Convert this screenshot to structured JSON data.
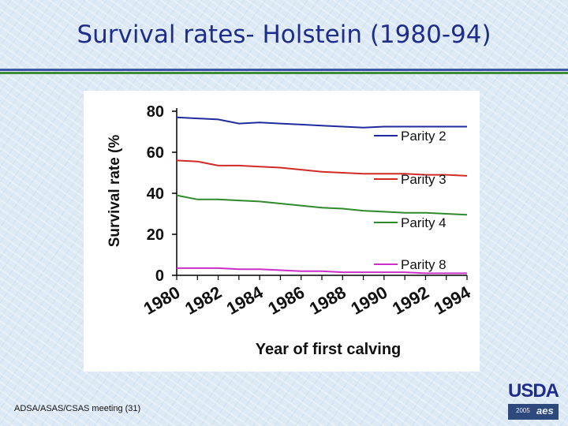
{
  "slide": {
    "title": "Survival rates- Holstein (1980-94)",
    "footer": "ADSA/ASAS/CSAS meeting (31)",
    "logo_text": "USDA",
    "logo_year": "2005",
    "logo_mark": "aes"
  },
  "colors": {
    "title": "#1f2d8a",
    "rule_blue": "#3d57a6",
    "rule_green": "#3e8a3a"
  },
  "chart_data": {
    "type": "line",
    "title": "",
    "xlabel": "Year of first calving",
    "ylabel": "Survival rate (%",
    "ylim": [
      0,
      80
    ],
    "yticks": [
      0,
      20,
      40,
      60,
      80
    ],
    "xlim": [
      1980,
      1994
    ],
    "xtick_labels": [
      "1980",
      "1982",
      "1984",
      "1986",
      "1988",
      "1990",
      "1992",
      "1994"
    ],
    "grid": false,
    "legend": "right",
    "x": [
      1980,
      1981,
      1982,
      1983,
      1984,
      1985,
      1986,
      1987,
      1988,
      1989,
      1990,
      1991,
      1992,
      1993,
      1994
    ],
    "series": [
      {
        "name": "Parity 2",
        "color": "#1f2a9e",
        "values": [
          77,
          76.5,
          76,
          74,
          74.5,
          74,
          73.5,
          73,
          72.5,
          72,
          72.5,
          72.5,
          72.5,
          72.5,
          72.5
        ]
      },
      {
        "name": "Parity 3",
        "color": "#d22a26",
        "values": [
          56,
          55.5,
          53.5,
          53.5,
          53,
          52.5,
          51.5,
          50.5,
          50,
          49.5,
          49.5,
          49.5,
          49,
          49,
          48.5
        ]
      },
      {
        "name": "Parity 4",
        "color": "#2f8a2c",
        "values": [
          39,
          37,
          37,
          36.5,
          36,
          35,
          34,
          33,
          32.5,
          31.5,
          31,
          30.5,
          30.5,
          30,
          29.5
        ]
      },
      {
        "name": "Parity 8",
        "color": "#cc2fc8",
        "values": [
          3.5,
          3.5,
          3.5,
          3,
          3,
          2.5,
          2,
          2,
          1.5,
          1.5,
          1.5,
          1.5,
          1,
          1,
          1
        ]
      }
    ]
  }
}
